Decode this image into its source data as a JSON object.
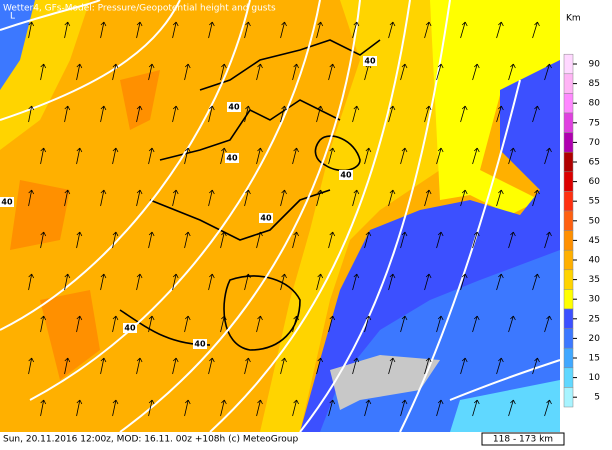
{
  "header": {
    "title": "Wetter4, GFs-Model: Pressure/Geopotential height and gusts"
  },
  "map": {
    "low_marker": "L",
    "contour_labels": [
      "40",
      "40",
      "40",
      "40",
      "40",
      "40",
      "40",
      "40"
    ]
  },
  "legend": {
    "unit": "Km",
    "items": [
      {
        "value": 90,
        "color": "#ffd8ff"
      },
      {
        "value": 85,
        "color": "#ffb4f5"
      },
      {
        "value": 80,
        "color": "#ff88ff"
      },
      {
        "value": 75,
        "color": "#e040e0"
      },
      {
        "value": 70,
        "color": "#b000b0"
      },
      {
        "value": 65,
        "color": "#b00000"
      },
      {
        "value": 60,
        "color": "#dc0000"
      },
      {
        "value": 55,
        "color": "#ff3010"
      },
      {
        "value": 50,
        "color": "#ff6010"
      },
      {
        "value": 45,
        "color": "#ff9000"
      },
      {
        "value": 40,
        "color": "#ffb000"
      },
      {
        "value": 35,
        "color": "#ffd400"
      },
      {
        "value": 30,
        "color": "#ffff00"
      },
      {
        "value": 25,
        "color": "#3c50ff"
      },
      {
        "value": 20,
        "color": "#3c78ff"
      },
      {
        "value": 15,
        "color": "#40a8ff"
      },
      {
        "value": 10,
        "color": "#60d8ff"
      },
      {
        "value": 5,
        "color": "#a8f4ff"
      }
    ]
  },
  "footer": {
    "text": "Sun, 20.11.2016 12:00z, MOD: 16.11. 00z +108h (c) MeteoGroup",
    "scale": "118 - 173 km"
  }
}
